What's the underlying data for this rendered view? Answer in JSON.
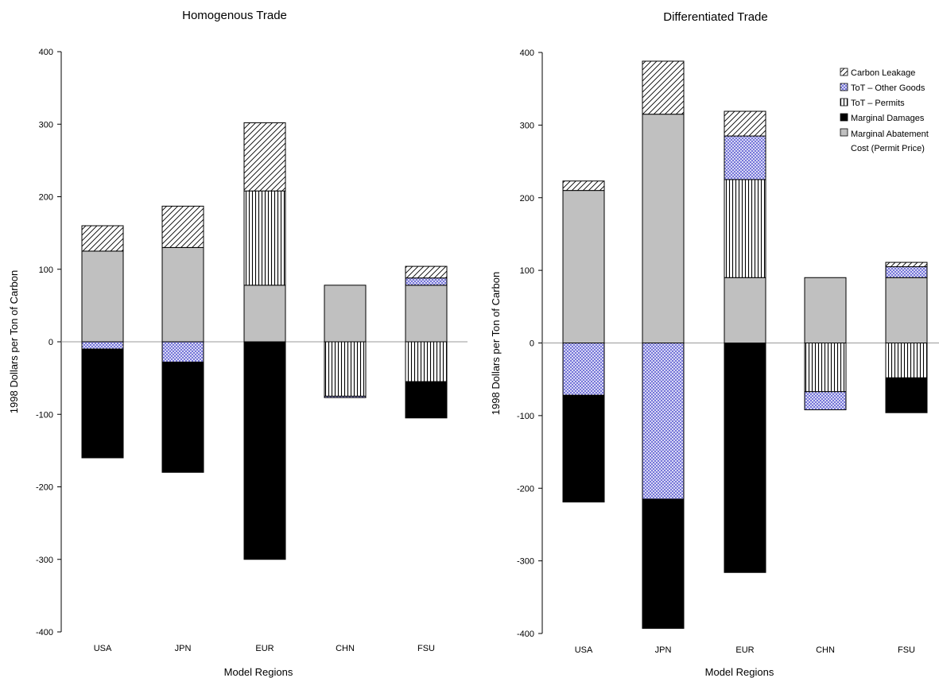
{
  "colors": {
    "marginal_abatement_cost": "#c0c0c0",
    "marginal_damages": "#000000",
    "tot_permits": "#ffffff",
    "tot_other_goods": "#6b6bd6",
    "carbon_leakage": "#ffffff",
    "axis": "#000000",
    "zero_line": "#999999"
  },
  "chart_data": [
    {
      "type": "bar",
      "stacked": true,
      "title": "Homogenous Trade",
      "xlabel": "Model Regions",
      "ylabel": "1998 Dollars per Ton of Carbon",
      "ylim": [
        -400,
        400
      ],
      "yticks": [
        400,
        300,
        200,
        100,
        0,
        -100,
        -200,
        -300,
        -400
      ],
      "grid": false,
      "categories": [
        "USA",
        "JPN",
        "EUR",
        "CHN",
        "FSU"
      ],
      "series": [
        {
          "name": "Marginal Abatement Cost (Permit Price)",
          "key": "mac",
          "values": [
            125,
            130,
            78,
            78,
            78
          ]
        },
        {
          "name": "ToT - Permits",
          "key": "permits",
          "values": [
            0,
            0,
            130,
            -75,
            -55
          ]
        },
        {
          "name": "ToT - Other Goods",
          "key": "other",
          "values": [
            -10,
            -28,
            0,
            -2,
            10
          ]
        },
        {
          "name": "Marginal Damages",
          "key": "damages",
          "values": [
            -150,
            -152,
            -300,
            0,
            -50
          ]
        },
        {
          "name": "Carbon Leakage",
          "key": "leakage",
          "values": [
            35,
            57,
            94,
            0,
            16
          ]
        }
      ]
    },
    {
      "type": "bar",
      "stacked": true,
      "title": "Differentiated Trade",
      "xlabel": "Model Regions",
      "ylabel": "1998 Dollars per Ton of Carbon",
      "ylim": [
        -400,
        400
      ],
      "yticks": [
        400,
        300,
        200,
        100,
        0,
        -100,
        -200,
        -300,
        -400
      ],
      "grid": false,
      "legend_position": "top-right",
      "categories": [
        "USA",
        "JPN",
        "EUR",
        "CHN",
        "FSU"
      ],
      "legend": [
        {
          "label": "Carbon Leakage",
          "key": "leakage"
        },
        {
          "label": "ToT – Other Goods",
          "key": "other"
        },
        {
          "label": "ToT – Permits",
          "key": "permits"
        },
        {
          "label": "Marginal Damages",
          "key": "damages"
        },
        {
          "label": "Marginal Abatement",
          "label2": "Cost (Permit Price)",
          "key": "mac"
        }
      ],
      "series": [
        {
          "name": "Marginal Abatement Cost (Permit Price)",
          "key": "mac",
          "values": [
            210,
            315,
            90,
            90,
            90
          ]
        },
        {
          "name": "ToT - Permits",
          "key": "permits",
          "values": [
            0,
            0,
            135,
            -67,
            -48
          ]
        },
        {
          "name": "ToT - Other Goods",
          "key": "other",
          "values": [
            -72,
            -215,
            60,
            -25,
            15
          ]
        },
        {
          "name": "Marginal Damages",
          "key": "damages",
          "values": [
            -147,
            -178,
            -316,
            0,
            -48
          ]
        },
        {
          "name": "Carbon Leakage",
          "key": "leakage",
          "values": [
            13,
            73,
            34,
            0,
            6
          ]
        }
      ]
    }
  ]
}
